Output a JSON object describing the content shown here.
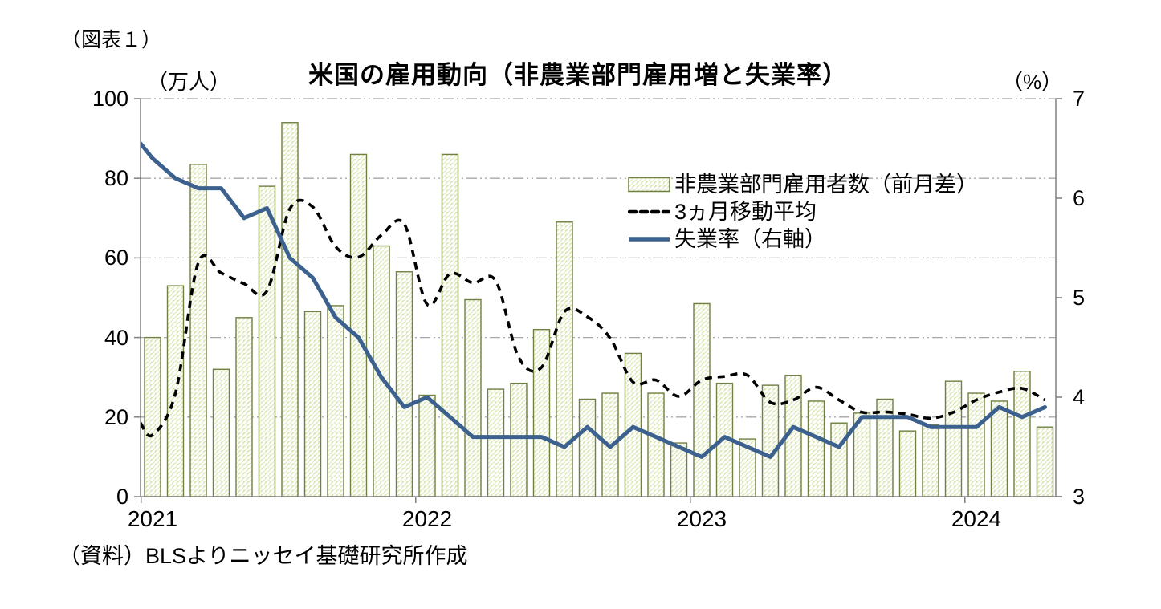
{
  "figure_label": "（図表１）",
  "title": "米国の雇用動向（非農業部門雇用増と失業率）",
  "source": "（資料）BLSよりニッセイ基礎研究所作成",
  "left_axis": {
    "unit_label": "（万人）",
    "min": 0,
    "max": 100,
    "tick_labels": [
      "0",
      "20",
      "40",
      "60",
      "80",
      "100"
    ],
    "tick_values": [
      0,
      20,
      40,
      60,
      80,
      100
    ]
  },
  "right_axis": {
    "unit_label": "（%）",
    "min": 3,
    "max": 7,
    "tick_labels": [
      "3",
      "4",
      "5",
      "6",
      "7"
    ],
    "tick_values": [
      3,
      4,
      5,
      6,
      7
    ]
  },
  "x_axis": {
    "year_labels": [
      "2021",
      "2022",
      "2023",
      "2024"
    ]
  },
  "legend": {
    "position": "inside-top-right",
    "items": [
      {
        "label": "非農業部門雇用者数（前月差）",
        "swatch": "hatched-bar"
      },
      {
        "label": "3ヵ月移動平均",
        "swatch": "dashed-black-line"
      },
      {
        "label": "失業率（右軸）",
        "swatch": "solid-blue-line"
      }
    ]
  },
  "colors": {
    "bar_fill": "#d7e3af",
    "bar_hatch": "#ffffff",
    "bar_border": "#6f8040",
    "moving_average": "#000000",
    "unemployment": "#3c618e",
    "grid": "#a8a8a8",
    "axis": "#808080",
    "text": "#000000"
  },
  "chart_data": {
    "type": "combo-bar-line",
    "title": "米国の雇用動向（非農業部門雇用増と失業率）",
    "xlabel": "",
    "ylabel_left": "（万人）",
    "ylabel_right": "（%）",
    "ylim_left": [
      0,
      100
    ],
    "ylim_right": [
      3,
      7
    ],
    "grid": true,
    "legend_position": "inside-top-right",
    "months": [
      "2021-01",
      "2021-02",
      "2021-03",
      "2021-04",
      "2021-05",
      "2021-06",
      "2021-07",
      "2021-08",
      "2021-09",
      "2021-10",
      "2021-11",
      "2021-12",
      "2022-01",
      "2022-02",
      "2022-03",
      "2022-04",
      "2022-05",
      "2022-06",
      "2022-07",
      "2022-08",
      "2022-09",
      "2022-10",
      "2022-11",
      "2022-12",
      "2023-01",
      "2023-02",
      "2023-03",
      "2023-04",
      "2023-05",
      "2023-06",
      "2023-07",
      "2023-08",
      "2023-09",
      "2023-10",
      "2023-11",
      "2023-12",
      "2024-01",
      "2024-02",
      "2024-03",
      "2024-04"
    ],
    "series": [
      {
        "name": "非農業部門雇用者数（前月差）",
        "type": "bar",
        "axis": "left",
        "values": [
          40,
          53,
          83.5,
          32,
          45,
          78,
          94,
          46.5,
          48,
          86,
          63,
          56.5,
          25.5,
          86,
          49.5,
          27,
          28.5,
          42,
          69,
          24.5,
          26,
          36,
          26,
          13.5,
          48.5,
          28.5,
          14.5,
          28,
          30.5,
          24,
          18.5,
          21,
          24.5,
          16.5,
          18,
          29,
          26,
          24,
          31.5,
          17.5
        ]
      },
      {
        "name": "3ヵ月移動平均",
        "type": "line",
        "style": "dashed",
        "axis": "left",
        "values": [
          15.5,
          26,
          58.8,
          56.2,
          53.5,
          51.7,
          72.3,
          72.8,
          62.8,
          60.2,
          65.7,
          68.5,
          48.3,
          56.0,
          53.7,
          54.2,
          35.0,
          32.5,
          46.5,
          45.2,
          39.8,
          28.8,
          29.3,
          25.2,
          29.3,
          30.2,
          30.5,
          23.7,
          24.3,
          27.5,
          24.3,
          21.2,
          21.3,
          20.7,
          19.7,
          21.2,
          24.3,
          26.3,
          27.2,
          24.3
        ]
      },
      {
        "name": "失業率（右軸）",
        "type": "line",
        "style": "solid",
        "axis": "right",
        "values": [
          6.4,
          6.2,
          6.1,
          6.1,
          5.8,
          5.9,
          5.4,
          5.2,
          4.8,
          4.6,
          4.2,
          3.9,
          4.0,
          3.8,
          3.6,
          3.6,
          3.6,
          3.6,
          3.5,
          3.7,
          3.5,
          3.7,
          3.6,
          3.5,
          3.4,
          3.6,
          3.5,
          3.4,
          3.7,
          3.6,
          3.5,
          3.8,
          3.8,
          3.8,
          3.7,
          3.7,
          3.7,
          3.9,
          3.8,
          3.9
        ]
      }
    ],
    "edge_start": {
      "moving_average_at_axis": 18.5,
      "unemployment_at_axis": 6.55
    }
  }
}
